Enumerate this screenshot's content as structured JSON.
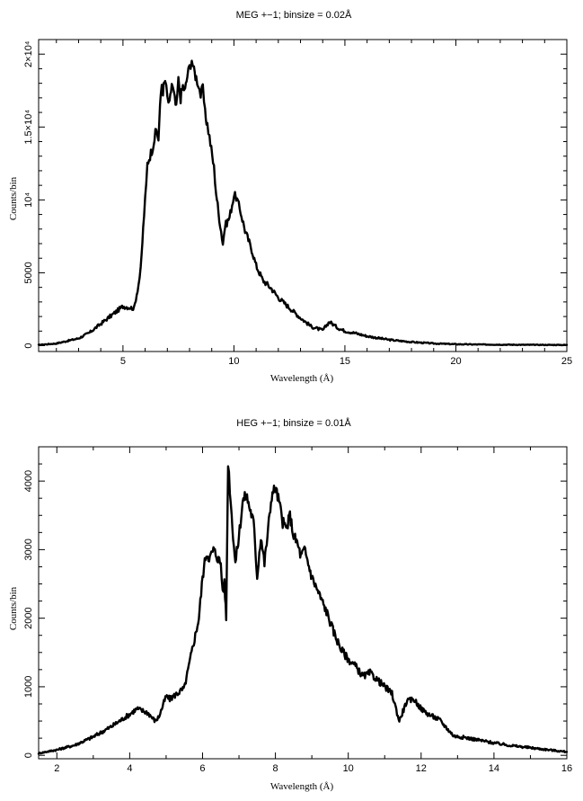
{
  "chart_data": [
    {
      "type": "line",
      "title": "MEG +−1; binsize = 0.02Å",
      "xlabel": "Wavelength (Å)",
      "ylabel": "Counts/bin",
      "xlim": [
        1.2,
        25
      ],
      "ylim": [
        -400,
        21000
      ],
      "xticks_major": [
        5,
        10,
        15,
        20,
        25
      ],
      "xticks_minor": [
        2,
        3,
        4,
        6,
        7,
        8,
        9,
        11,
        12,
        13,
        14,
        16,
        17,
        18,
        19,
        21,
        22,
        23,
        24
      ],
      "yticks": [
        {
          "value": 0,
          "label": "0"
        },
        {
          "value": 5000,
          "label": "5000"
        },
        {
          "value": 10000,
          "label": "10⁴"
        },
        {
          "value": 15000,
          "label": "1.5×10⁴"
        },
        {
          "value": 20000,
          "label": "2×10⁴"
        }
      ],
      "yticks_minor": [
        1000,
        2000,
        3000,
        4000,
        6000,
        7000,
        8000,
        9000,
        11000,
        12000,
        13000,
        14000,
        16000,
        17000,
        18000,
        19000
      ],
      "grid": false,
      "x": [
        1.2,
        2,
        3,
        3.5,
        4,
        4.5,
        5,
        5.2,
        5.5,
        5.7,
        5.8,
        5.95,
        6.05,
        6.1,
        6.3,
        6.5,
        6.6,
        6.7,
        6.75,
        6.8,
        6.9,
        7.0,
        7.1,
        7.2,
        7.3,
        7.4,
        7.5,
        7.6,
        7.7,
        7.8,
        7.9,
        8.0,
        8.1,
        8.2,
        8.3,
        8.4,
        8.5,
        8.6,
        8.7,
        8.8,
        8.9,
        9.1,
        9.2,
        9.3,
        9.5,
        9.6,
        9.8,
        10.0,
        10.1,
        10.3,
        10.5,
        10.8,
        11.0,
        11.3,
        11.7,
        12,
        12.5,
        13,
        13.5,
        14,
        14.3,
        14.7,
        15,
        15.5,
        16,
        17,
        18,
        19,
        20,
        21,
        22,
        23,
        25
      ],
      "y": [
        50,
        150,
        500,
        900,
        1500,
        2100,
        2700,
        2650,
        2550,
        4200,
        5200,
        9000,
        11000,
        12500,
        13400,
        14800,
        14200,
        17200,
        18000,
        17500,
        18200,
        17000,
        16500,
        18000,
        17200,
        16200,
        18200,
        17000,
        17800,
        17500,
        18500,
        19100,
        19700,
        18800,
        18400,
        18000,
        17200,
        17600,
        15900,
        15200,
        14300,
        12200,
        10500,
        9200,
        7000,
        8200,
        8800,
        10300,
        10200,
        9200,
        7900,
        6600,
        5500,
        4500,
        3900,
        3300,
        2600,
        1900,
        1300,
        1050,
        1650,
        1200,
        1000,
        850,
        650,
        400,
        250,
        150,
        100,
        80,
        70,
        60,
        50
      ]
    },
    {
      "type": "line",
      "title": "HEG +−1; binsize = 0.01Å",
      "xlabel": "Wavelength (Å)",
      "ylabel": "Counts/bin",
      "xlim": [
        1.5,
        16
      ],
      "ylim": [
        -50,
        4500
      ],
      "xticks_major": [
        2,
        4,
        6,
        8,
        10,
        12,
        14,
        16
      ],
      "xticks_minor": [
        3,
        5,
        7,
        9,
        11,
        13,
        15
      ],
      "yticks": [
        {
          "value": 0,
          "label": "0"
        },
        {
          "value": 1000,
          "label": "1000"
        },
        {
          "value": 2000,
          "label": "2000"
        },
        {
          "value": 3000,
          "label": "3000"
        },
        {
          "value": 4000,
          "label": "4000"
        }
      ],
      "yticks_minor": [
        250,
        500,
        750,
        1250,
        1500,
        1750,
        2250,
        2500,
        2750,
        3250,
        3500,
        3750,
        4250
      ],
      "grid": false,
      "x": [
        1.5,
        2,
        2.5,
        3,
        3.5,
        4,
        4.2,
        4.5,
        4.7,
        4.8,
        5,
        5.1,
        5.3,
        5.5,
        5.7,
        5.9,
        6,
        6.1,
        6.2,
        6.3,
        6.4,
        6.5,
        6.55,
        6.6,
        6.65,
        6.7,
        6.75,
        6.8,
        6.9,
        7,
        7.1,
        7.2,
        7.3,
        7.4,
        7.5,
        7.6,
        7.7,
        7.8,
        7.9,
        8,
        8.1,
        8.2,
        8.3,
        8.4,
        8.5,
        8.6,
        8.7,
        8.8,
        9,
        9.2,
        9.4,
        9.6,
        9.8,
        10,
        10.2,
        10.4,
        10.6,
        10.8,
        11,
        11.2,
        11.4,
        11.6,
        11.8,
        12,
        12.2,
        12.5,
        12.7,
        12.9,
        13.2,
        13.5,
        14,
        14.5,
        15,
        15.5,
        16
      ],
      "y": [
        30,
        80,
        150,
        270,
        420,
        600,
        680,
        620,
        500,
        560,
        860,
        820,
        900,
        980,
        1500,
        2000,
        2600,
        2950,
        2880,
        3000,
        2900,
        2800,
        2400,
        2500,
        2000,
        4300,
        3900,
        3500,
        2800,
        3200,
        3700,
        3800,
        3600,
        3400,
        2600,
        3200,
        2800,
        3300,
        3800,
        3900,
        3700,
        3400,
        3300,
        3500,
        3200,
        3100,
        2900,
        3000,
        2600,
        2350,
        2100,
        1800,
        1550,
        1400,
        1300,
        1150,
        1200,
        1100,
        1000,
        900,
        500,
        780,
        820,
        680,
        600,
        520,
        400,
        280,
        260,
        230,
        180,
        140,
        110,
        80,
        50
      ]
    }
  ]
}
